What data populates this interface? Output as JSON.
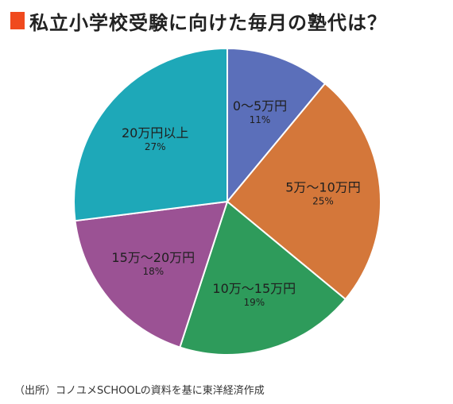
{
  "colors": {
    "title_marker": "#f04a1e",
    "slice_stroke": "#ffffff"
  },
  "source_note": "（出所）コノユメSCHOOLの資料を基に東洋経済作成",
  "chart_data": {
    "type": "pie",
    "title": "私立小学校受験に向けた毎月の塾代は？",
    "slices": [
      {
        "label": "0〜5万円",
        "value": 11,
        "value_label": "11%",
        "color": "#5b6fba"
      },
      {
        "label": "5万〜10万円",
        "value": 25,
        "value_label": "25%",
        "color": "#d4773a"
      },
      {
        "label": "10万〜15万円",
        "value": 19,
        "value_label": "19%",
        "color": "#2e9b5b"
      },
      {
        "label": "15万〜20万円",
        "value": 18,
        "value_label": "18%",
        "color": "#9b5294"
      },
      {
        "label": "20万円以上",
        "value": 27,
        "value_label": "27%",
        "color": "#1ea8b8"
      }
    ],
    "start": "12 o'clock",
    "direction": "clockwise",
    "legend": "none"
  }
}
